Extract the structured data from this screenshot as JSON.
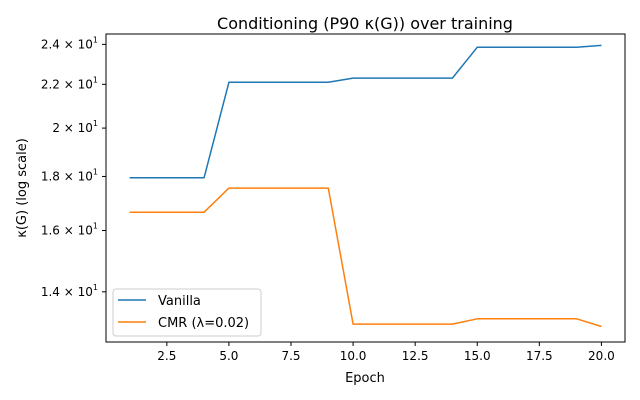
{
  "chart_data": {
    "type": "line",
    "title": "Conditioning (P90 κ(G)) over training",
    "xlabel": "Epoch",
    "ylabel": "κ(G) (log scale)",
    "xscale": "linear",
    "yscale": "log",
    "xlim": [
      0.05,
      20.95
    ],
    "ylim": [
      12.55,
      24.55
    ],
    "xticks": [
      2.5,
      5.0,
      7.5,
      10.0,
      12.5,
      15.0,
      17.5,
      20.0
    ],
    "xtick_labels": [
      "2.5",
      "5.0",
      "7.5",
      "10.0",
      "12.5",
      "15.0",
      "17.5",
      "20.0"
    ],
    "yticks": [
      {
        "value": 14,
        "mantissa": "1.4",
        "exponent": "1"
      },
      {
        "value": 16,
        "mantissa": "1.6",
        "exponent": "1"
      },
      {
        "value": 18,
        "mantissa": "1.8",
        "exponent": "1"
      },
      {
        "value": 20,
        "mantissa": "2",
        "exponent": "1"
      },
      {
        "value": 22,
        "mantissa": "2.2",
        "exponent": "1"
      },
      {
        "value": 24,
        "mantissa": "2.4",
        "exponent": "1"
      }
    ],
    "x": [
      1,
      2,
      3,
      4,
      5,
      6,
      7,
      8,
      9,
      10,
      11,
      12,
      13,
      14,
      15,
      16,
      17,
      18,
      19,
      20
    ],
    "series": [
      {
        "name": "Vanilla",
        "color": "#1f77b4",
        "values": [
          17.95,
          17.95,
          17.95,
          17.95,
          22.1,
          22.1,
          22.1,
          22.1,
          22.1,
          22.3,
          22.3,
          22.3,
          22.3,
          22.3,
          23.85,
          23.85,
          23.85,
          23.85,
          23.85,
          23.95
        ]
      },
      {
        "name": "CMR (λ=0.02)",
        "color": "#ff7f0e",
        "values": [
          16.65,
          16.65,
          16.65,
          16.65,
          17.55,
          17.55,
          17.55,
          17.55,
          17.55,
          13.05,
          13.05,
          13.05,
          13.05,
          13.05,
          13.2,
          13.2,
          13.2,
          13.2,
          13.2,
          12.98
        ]
      }
    ],
    "legend": "lower-left",
    "grid": false
  }
}
